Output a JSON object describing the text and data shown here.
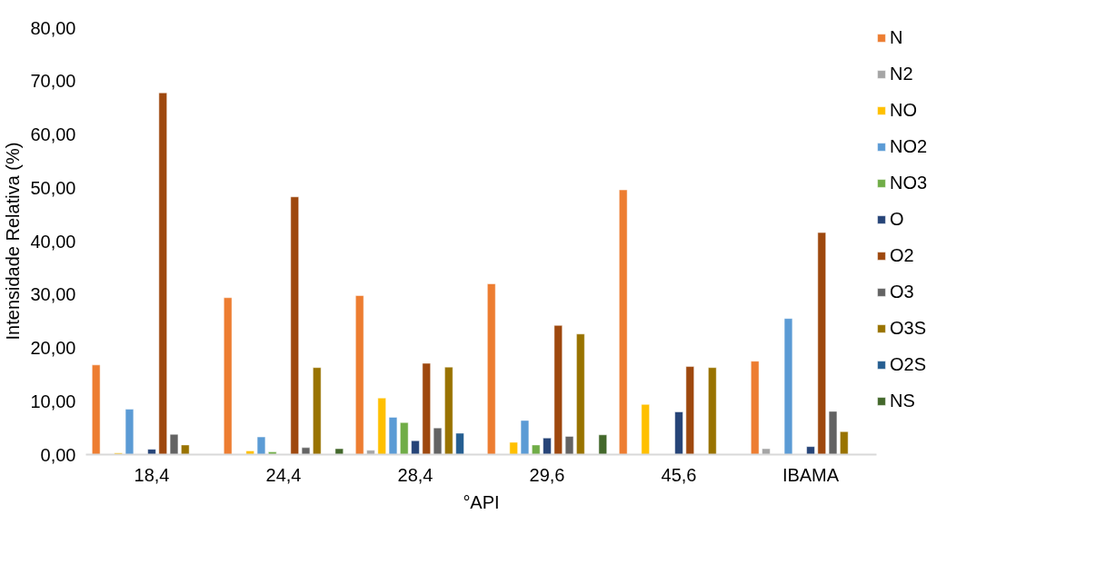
{
  "chart_data": {
    "type": "bar",
    "xlabel": "°API",
    "ylabel": "Intensidade Relativa (%)",
    "categories": [
      "18,4",
      "24,4",
      "28,4",
      "29,6",
      "45,6",
      "IBAMA"
    ],
    "ylim": [
      0,
      80
    ],
    "yticks": [
      {
        "value": 0,
        "label": "0,00"
      },
      {
        "value": 10,
        "label": "10,00"
      },
      {
        "value": 20,
        "label": "20,00"
      },
      {
        "value": 30,
        "label": "30,00"
      },
      {
        "value": 40,
        "label": "40,00"
      },
      {
        "value": 50,
        "label": "50,00"
      },
      {
        "value": 60,
        "label": "60,00"
      },
      {
        "value": 70,
        "label": "70,00"
      },
      {
        "value": 80,
        "label": "80,00"
      }
    ],
    "grid": false,
    "legend": "right",
    "series": [
      {
        "name": "N",
        "color": "#ed7d31",
        "values": [
          16.8,
          29.4,
          29.8,
          32.0,
          49.6,
          17.5
        ]
      },
      {
        "name": "N2",
        "color": "#a5a5a5",
        "values": [
          null,
          null,
          0.8,
          null,
          null,
          1.1
        ]
      },
      {
        "name": "NO",
        "color": "#ffc000",
        "values": [
          0.3,
          0.7,
          10.6,
          2.3,
          9.4,
          null
        ]
      },
      {
        "name": "NO2",
        "color": "#5b9bd5",
        "values": [
          8.5,
          3.3,
          7.0,
          6.4,
          null,
          25.5
        ]
      },
      {
        "name": "NO3",
        "color": "#70ad47",
        "values": [
          null,
          0.5,
          6.0,
          1.8,
          null,
          null
        ]
      },
      {
        "name": "O",
        "color": "#264478",
        "values": [
          1.0,
          null,
          2.6,
          3.1,
          8.0,
          1.5
        ]
      },
      {
        "name": "O2",
        "color": "#9e480e",
        "values": [
          67.8,
          48.3,
          17.1,
          24.2,
          16.5,
          41.6
        ]
      },
      {
        "name": "O3",
        "color": "#636363",
        "values": [
          3.8,
          1.3,
          5.0,
          3.4,
          null,
          8.1
        ]
      },
      {
        "name": "O3S",
        "color": "#997300",
        "values": [
          1.8,
          16.3,
          16.4,
          22.6,
          16.3,
          4.3
        ]
      },
      {
        "name": "O2S",
        "color": "#255e91",
        "values": [
          null,
          null,
          4.0,
          null,
          null,
          null
        ]
      },
      {
        "name": "NS",
        "color": "#43682b",
        "values": [
          null,
          1.1,
          null,
          3.7,
          null,
          null
        ]
      }
    ]
  }
}
